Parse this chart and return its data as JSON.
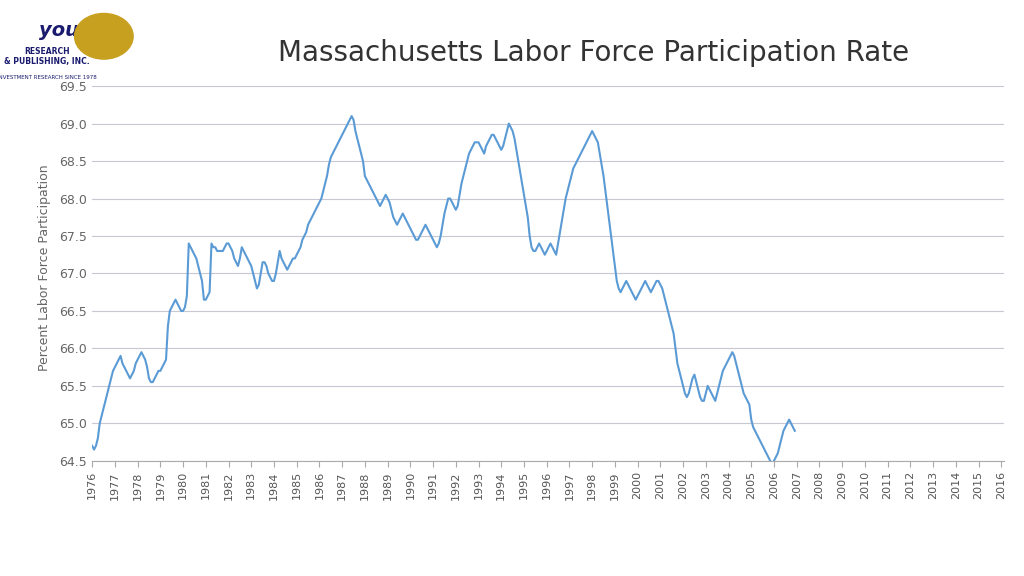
{
  "title": "Massachusetts Labor Force Participation Rate",
  "ylabel": "Percent Labor Force Participation",
  "line_color": "#5B9BD5",
  "line_width": 1.5,
  "background_color": "#ffffff",
  "ylim": [
    64.5,
    69.65
  ],
  "yticks": [
    64.5,
    65.0,
    65.5,
    66.0,
    66.5,
    67.0,
    67.5,
    68.0,
    68.5,
    69.0,
    69.5
  ],
  "grid_color": "#c8c8d4",
  "title_fontsize": 20,
  "ylabel_fontsize": 9,
  "tick_fontsize": 9,
  "data": [
    64.7,
    64.65,
    64.7,
    64.8,
    65.0,
    65.1,
    65.2,
    65.3,
    65.4,
    65.5,
    65.6,
    65.7,
    65.75,
    65.8,
    65.85,
    65.9,
    65.8,
    65.75,
    65.7,
    65.65,
    65.6,
    65.65,
    65.7,
    65.8,
    65.85,
    65.9,
    65.95,
    65.9,
    65.85,
    65.75,
    65.6,
    65.55,
    65.55,
    65.6,
    65.65,
    65.7,
    65.7,
    65.75,
    65.8,
    65.85,
    66.3,
    66.5,
    66.55,
    66.6,
    66.65,
    66.6,
    66.55,
    66.5,
    66.5,
    66.55,
    66.7,
    67.4,
    67.35,
    67.3,
    67.25,
    67.2,
    67.1,
    67.0,
    66.9,
    66.65,
    66.65,
    66.7,
    66.75,
    67.4,
    67.35,
    67.35,
    67.3,
    67.3,
    67.3,
    67.3,
    67.35,
    67.4,
    67.4,
    67.35,
    67.3,
    67.2,
    67.15,
    67.1,
    67.2,
    67.35,
    67.3,
    67.25,
    67.2,
    67.15,
    67.1,
    67.0,
    66.9,
    66.8,
    66.85,
    67.0,
    67.15,
    67.15,
    67.1,
    67.0,
    66.95,
    66.9,
    66.9,
    67.0,
    67.15,
    67.3,
    67.2,
    67.15,
    67.1,
    67.05,
    67.1,
    67.15,
    67.2,
    67.2,
    67.25,
    67.3,
    67.35,
    67.45,
    67.5,
    67.55,
    67.65,
    67.7,
    67.75,
    67.8,
    67.85,
    67.9,
    67.95,
    68.0,
    68.1,
    68.2,
    68.3,
    68.45,
    68.55,
    68.6,
    68.65,
    68.7,
    68.75,
    68.8,
    68.85,
    68.9,
    68.95,
    69.0,
    69.05,
    69.1,
    69.05,
    68.9,
    68.8,
    68.7,
    68.6,
    68.5,
    68.3,
    68.25,
    68.2,
    68.15,
    68.1,
    68.05,
    68.0,
    67.95,
    67.9,
    67.95,
    68.0,
    68.05,
    68.0,
    67.95,
    67.85,
    67.75,
    67.7,
    67.65,
    67.7,
    67.75,
    67.8,
    67.75,
    67.7,
    67.65,
    67.6,
    67.55,
    67.5,
    67.45,
    67.45,
    67.5,
    67.55,
    67.6,
    67.65,
    67.6,
    67.55,
    67.5,
    67.45,
    67.4,
    67.35,
    67.4,
    67.5,
    67.65,
    67.8,
    67.9,
    68.0,
    68.0,
    67.95,
    67.9,
    67.85,
    67.9,
    68.05,
    68.2,
    68.3,
    68.4,
    68.5,
    68.6,
    68.65,
    68.7,
    68.75,
    68.75,
    68.75,
    68.7,
    68.65,
    68.6,
    68.7,
    68.75,
    68.8,
    68.85,
    68.85,
    68.8,
    68.75,
    68.7,
    68.65,
    68.7,
    68.8,
    68.9,
    69.0,
    68.95,
    68.9,
    68.8,
    68.65,
    68.5,
    68.35,
    68.2,
    68.05,
    67.9,
    67.75,
    67.5,
    67.35,
    67.3,
    67.3,
    67.35,
    67.4,
    67.35,
    67.3,
    67.25,
    67.3,
    67.35,
    67.4,
    67.35,
    67.3,
    67.25,
    67.4,
    67.55,
    67.7,
    67.85,
    68.0,
    68.1,
    68.2,
    68.3,
    68.4,
    68.45,
    68.5,
    68.55,
    68.6,
    68.65,
    68.7,
    68.75,
    68.8,
    68.85,
    68.9,
    68.85,
    68.8,
    68.75,
    68.6,
    68.45,
    68.3,
    68.1,
    67.9,
    67.7,
    67.5,
    67.3,
    67.1,
    66.9,
    66.8,
    66.75,
    66.8,
    66.85,
    66.9,
    66.85,
    66.8,
    66.75,
    66.7,
    66.65,
    66.7,
    66.75,
    66.8,
    66.85,
    66.9,
    66.85,
    66.8,
    66.75,
    66.8,
    66.85,
    66.9,
    66.9,
    66.85,
    66.8,
    66.7,
    66.6,
    66.5,
    66.4,
    66.3,
    66.2,
    66.0,
    65.8,
    65.7,
    65.6,
    65.5,
    65.4,
    65.35,
    65.4,
    65.5,
    65.6,
    65.65,
    65.55,
    65.45,
    65.35,
    65.3,
    65.3,
    65.4,
    65.5,
    65.45,
    65.4,
    65.35,
    65.3,
    65.4,
    65.5,
    65.6,
    65.7,
    65.75,
    65.8,
    65.85,
    65.9,
    65.95,
    65.9,
    65.8,
    65.7,
    65.6,
    65.5,
    65.4,
    65.35,
    65.3,
    65.25,
    65.05,
    64.95,
    64.9,
    64.85,
    64.8,
    64.75,
    64.7,
    64.65,
    64.6,
    64.55,
    64.5,
    64.45,
    64.5,
    64.55,
    64.6,
    64.7,
    64.8,
    64.9,
    64.95,
    65.0,
    65.05,
    65.0,
    64.95,
    64.9
  ],
  "xlim_start": 1976.0,
  "xlim_end": 2016.1,
  "year_labels": [
    "1976",
    "1977",
    "1978",
    "1979",
    "1980",
    "1981",
    "1982",
    "1983",
    "1984",
    "1985",
    "1986",
    "1987",
    "1988",
    "1989",
    "1990",
    "1991",
    "1992",
    "1993",
    "1994",
    "1995",
    "1996",
    "1997",
    "1998",
    "1999",
    "2000",
    "2001",
    "2002",
    "2003",
    "2004",
    "2005",
    "2006",
    "2007",
    "2008",
    "2009",
    "2010",
    "2011",
    "2012",
    "2013",
    "2014",
    "2015",
    "2016"
  ]
}
